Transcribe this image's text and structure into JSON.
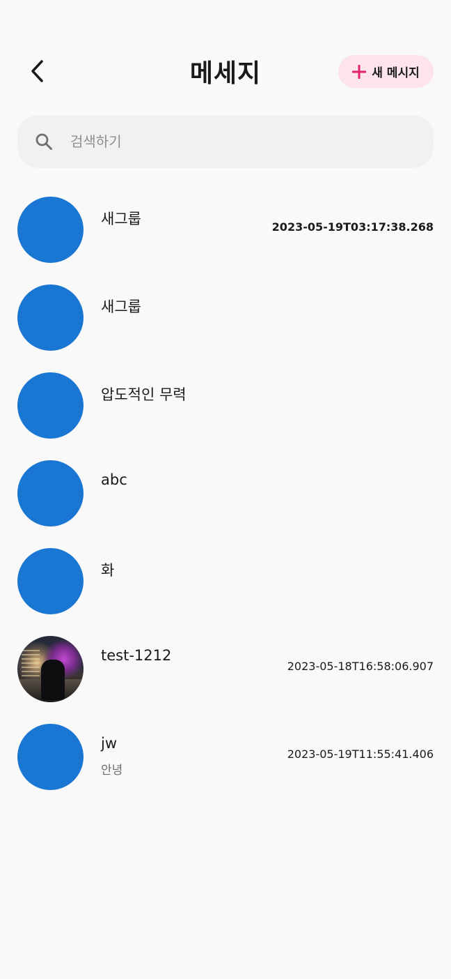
{
  "header": {
    "title": "메세지",
    "back_icon": "chevron-left-icon",
    "new_message_label": "새 메시지",
    "new_message_icon": "plus-icon",
    "accent_color": "#e0226b",
    "button_bg": "#fde3ea"
  },
  "search": {
    "placeholder": "검색하기",
    "value": "",
    "icon": "search-icon"
  },
  "conversations": [
    {
      "name": "새그룹",
      "preview": "",
      "time": "2023-05-19T03:17:38.268",
      "time_bold": true,
      "avatar": "default-blue"
    },
    {
      "name": "새그룹",
      "preview": "",
      "time": "",
      "time_bold": false,
      "avatar": "default-blue"
    },
    {
      "name": "압도적인 무력",
      "preview": "",
      "time": "",
      "time_bold": false,
      "avatar": "default-blue"
    },
    {
      "name": "abc",
      "preview": "",
      "time": "",
      "time_bold": false,
      "avatar": "default-blue"
    },
    {
      "name": "화",
      "preview": "",
      "time": "",
      "time_bold": false,
      "avatar": "default-blue"
    },
    {
      "name": "test-1212",
      "preview": "",
      "time": "2023-05-18T16:58:06.907",
      "time_bold": false,
      "avatar": "photo"
    },
    {
      "name": "jw",
      "preview": "안녕",
      "time": "2023-05-19T11:55:41.406",
      "time_bold": false,
      "avatar": "default-blue"
    }
  ],
  "colors": {
    "avatar_default": "#1976d2",
    "background": "#f9f9fa",
    "search_bg": "#f1f1f2"
  }
}
